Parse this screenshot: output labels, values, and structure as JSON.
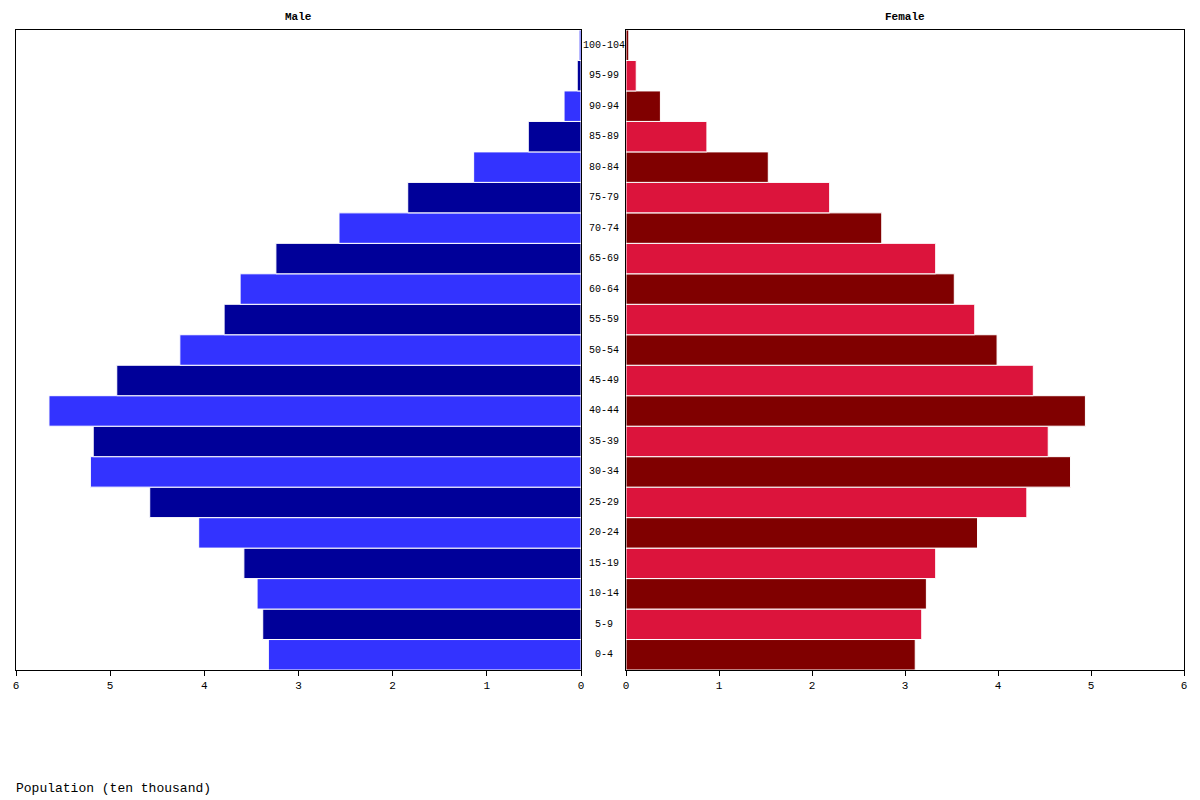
{
  "chart_data": {
    "type": "bar",
    "orientation": "horizontal",
    "x_label": "Population (ten thousand)",
    "categories": [
      "0-4",
      "5-9",
      "10-14",
      "15-19",
      "20-24",
      "25-29",
      "30-34",
      "35-39",
      "40-44",
      "45-49",
      "50-54",
      "55-59",
      "60-64",
      "65-69",
      "70-74",
      "75-79",
      "80-84",
      "85-89",
      "90-94",
      "95-99",
      "100-104"
    ],
    "series": [
      {
        "name": "Male",
        "values": [
          3.32,
          3.38,
          3.44,
          3.58,
          4.06,
          4.58,
          5.21,
          5.18,
          5.65,
          4.93,
          4.26,
          3.79,
          3.62,
          3.24,
          2.57,
          1.84,
          1.14,
          0.56,
          0.18,
          0.04,
          0.02
        ],
        "colors": [
          "#3333ff",
          "#000099",
          "#3333ff",
          "#000099",
          "#3333ff",
          "#000099",
          "#3333ff",
          "#000099",
          "#3333ff",
          "#000099",
          "#3333ff",
          "#000099",
          "#3333ff",
          "#000099",
          "#3333ff",
          "#000099",
          "#3333ff",
          "#000099",
          "#3333ff",
          "#000099",
          "#3333ff"
        ]
      },
      {
        "name": "Female",
        "values": [
          3.11,
          3.18,
          3.23,
          3.33,
          3.78,
          4.31,
          4.78,
          4.54,
          4.94,
          4.38,
          3.99,
          3.75,
          3.53,
          3.33,
          2.75,
          2.19,
          1.53,
          0.87,
          0.37,
          0.11,
          0.03
        ],
        "colors": [
          "#800000",
          "#dc143c",
          "#800000",
          "#dc143c",
          "#800000",
          "#dc143c",
          "#800000",
          "#dc143c",
          "#800000",
          "#dc143c",
          "#800000",
          "#dc143c",
          "#800000",
          "#dc143c",
          "#800000",
          "#dc143c",
          "#800000",
          "#dc143c",
          "#800000",
          "#dc143c",
          "#800000"
        ]
      }
    ],
    "xlim": [
      0,
      6
    ],
    "xticks": [
      0,
      1,
      2,
      3,
      4,
      5,
      6
    ],
    "grid": false,
    "tick_labels": "x"
  }
}
